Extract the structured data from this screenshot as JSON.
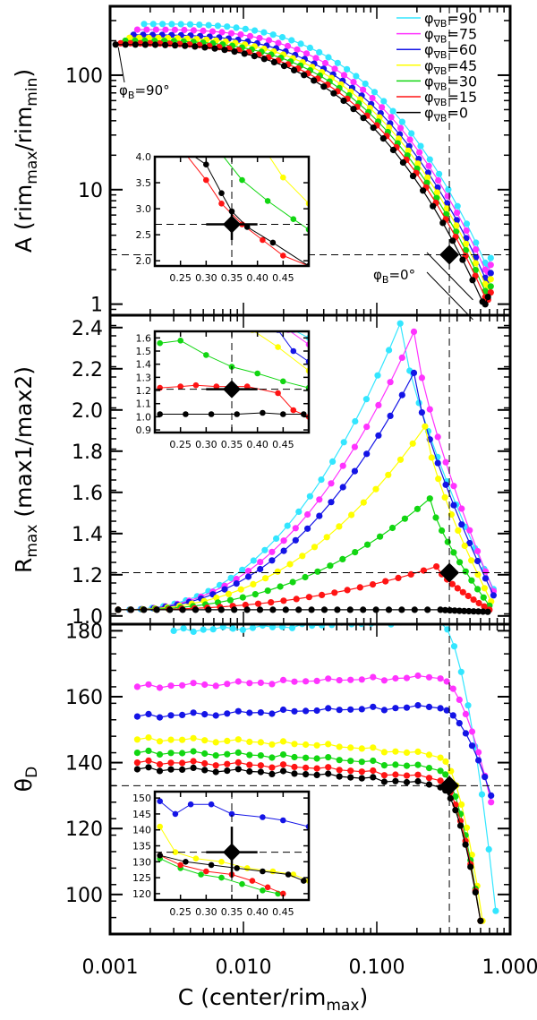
{
  "chart_data": {
    "type": "line",
    "xscale": "log",
    "xlim": [
      0.001,
      1.0
    ],
    "xlabel": "C (center/rim_max)",
    "xlabel_main": "C (center/rim",
    "xlabel_sub": "max",
    "xlabel_end": ")",
    "xticks": [
      0.001,
      0.01,
      0.1,
      1.0
    ],
    "xtick_labels": [
      "0.001",
      "0.010",
      "0.100",
      "1.000"
    ],
    "reference": {
      "C": 0.35
    },
    "legend": {
      "placement": "top-right",
      "prefix": "φ",
      "sub": "∇B",
      "entries": [
        {
          "name": "φ∇B=90",
          "value": "=90",
          "color": "#33e6ff"
        },
        {
          "name": "φ∇B=75",
          "value": "=75",
          "color": "#ff33ff"
        },
        {
          "name": "φ∇B=60",
          "value": "=60",
          "color": "#1414e6"
        },
        {
          "name": "φ∇B=45",
          "value": "=45",
          "color": "#ffff00"
        },
        {
          "name": "φ∇B=30",
          "value": "=30",
          "color": "#12d612"
        },
        {
          "name": "φ∇B=15",
          "value": "=15",
          "color": "#ff1414"
        },
        {
          "name": "φ∇B=0",
          "value": "=0",
          "color": "#000000"
        }
      ]
    },
    "panels": [
      {
        "id": "A",
        "ylabel": "A (rim_max/rim_min)",
        "ylabel_parts": [
          "A (rim",
          "max",
          "/rim",
          "min",
          ")"
        ],
        "yscale": "log",
        "ylim": [
          0.8,
          400
        ],
        "yticks": [
          1,
          10,
          100
        ],
        "ytick_labels": [
          "1",
          "10",
          "100"
        ],
        "reference": {
          "y": 2.7,
          "yerr": 0.3
        },
        "annotations": [
          {
            "text_main": "φ",
            "text_sub": "B",
            "text_end": "=90°",
            "at": [
              0.0011,
              185
            ]
          },
          {
            "text_main": "φ",
            "text_sub": "B",
            "text_end": "=0°",
            "at": [
              0.56,
              1.05
            ]
          }
        ],
        "series": [
          {
            "name": "φ∇B=90",
            "start": [
              0.0018,
              280
            ],
            "end": [
              0.65,
              2.3
            ]
          },
          {
            "name": "φ∇B=75",
            "start": [
              0.0016,
              250
            ],
            "end": [
              0.65,
              2.0
            ]
          },
          {
            "name": "φ∇B=60",
            "start": [
              0.0015,
              225
            ],
            "end": [
              0.65,
              1.7
            ]
          },
          {
            "name": "φ∇B=45",
            "start": [
              0.0014,
              212
            ],
            "end": [
              0.65,
              1.5
            ]
          },
          {
            "name": "φ∇B=30",
            "start": [
              0.0013,
              200
            ],
            "end": [
              0.65,
              1.3
            ]
          },
          {
            "name": "φ∇B=15",
            "start": [
              0.0012,
              190
            ],
            "end": [
              0.65,
              1.15
            ]
          },
          {
            "name": "φ∇B=0",
            "start": [
              0.0011,
              185
            ],
            "end": [
              0.62,
              1.05
            ]
          }
        ],
        "inset": {
          "xlim": [
            0.2,
            0.5
          ],
          "ylim": [
            1.9,
            4.0
          ],
          "xticks": [
            0.25,
            0.3,
            0.35,
            0.4,
            0.45
          ],
          "xtick_labels": [
            "0.25",
            "0.30",
            "0.35",
            "0.40",
            "0.45"
          ],
          "yticks": [
            2.0,
            2.5,
            3.0,
            3.5,
            4.0
          ],
          "ytick_labels": [
            "2.0",
            "2.5",
            "3.0",
            "3.5",
            "4.0"
          ],
          "reference": {
            "x": 0.35,
            "y": 2.7,
            "xerr": 0.05,
            "yerr": 0.3
          },
          "series": [
            {
              "name": "φ∇B=45",
              "points": [
                [
                  0.42,
                  4.05
                ],
                [
                  0.45,
                  3.6
                ],
                [
                  0.5,
                  3.1
                ]
              ]
            },
            {
              "name": "φ∇B=30",
              "points": [
                [
                  0.33,
                  4.05
                ],
                [
                  0.37,
                  3.55
                ],
                [
                  0.42,
                  3.15
                ],
                [
                  0.47,
                  2.8
                ],
                [
                  0.5,
                  2.6
                ]
              ]
            },
            {
              "name": "φ∇B=15",
              "points": [
                [
                  0.26,
                  4.05
                ],
                [
                  0.3,
                  3.55
                ],
                [
                  0.33,
                  3.1
                ],
                [
                  0.37,
                  2.7
                ],
                [
                  0.41,
                  2.4
                ],
                [
                  0.45,
                  2.1
                ],
                [
                  0.5,
                  1.9
                ]
              ]
            },
            {
              "name": "φ∇B=0",
              "points": [
                [
                  0.27,
                  4.05
                ],
                [
                  0.3,
                  3.85
                ],
                [
                  0.33,
                  3.3
                ],
                [
                  0.35,
                  2.95
                ],
                [
                  0.38,
                  2.65
                ],
                [
                  0.43,
                  2.35
                ],
                [
                  0.5,
                  1.9
                ]
              ]
            }
          ]
        }
      },
      {
        "id": "Rmax",
        "ylabel": "R_max (max1/max2)",
        "ylabel_parts": [
          "R",
          "max",
          " (max1/max2)"
        ],
        "yscale": "linear",
        "ylim": [
          0.96,
          2.46
        ],
        "yticks": [
          1.0,
          1.2,
          1.4,
          1.6,
          1.8,
          2.0,
          2.2,
          2.4
        ],
        "ytick_labels": [
          "1.0",
          "1.2",
          "1.4",
          "1.6",
          "1.8",
          "2.0",
          "2.2",
          "2.4"
        ],
        "reference": {
          "y": 1.21,
          "yerr": 0.05
        },
        "series": [
          {
            "name": "φ∇B=90",
            "peak": [
              0.15,
              2.42
            ],
            "end": [
              0.75,
              1.13
            ]
          },
          {
            "name": "φ∇B=75",
            "peak": [
              0.19,
              2.38
            ],
            "end": [
              0.75,
              1.12
            ]
          },
          {
            "name": "φ∇B=60",
            "peak": [
              0.19,
              2.18
            ],
            "end": [
              0.75,
              1.1
            ]
          },
          {
            "name": "φ∇B=45",
            "peak": [
              0.23,
              1.92
            ],
            "end": [
              0.72,
              1.07
            ]
          },
          {
            "name": "φ∇B=30",
            "peak": [
              0.25,
              1.57
            ],
            "end": [
              0.7,
              1.05
            ]
          },
          {
            "name": "φ∇B=15",
            "peak": [
              0.28,
              1.24
            ],
            "end": [
              0.7,
              1.03
            ]
          },
          {
            "name": "φ∇B=0",
            "peak": [
              0.3,
              1.03
            ],
            "end": [
              0.68,
              1.02
            ]
          }
        ],
        "inset": {
          "xlim": [
            0.2,
            0.5
          ],
          "ylim": [
            0.88,
            1.65
          ],
          "xticks": [
            0.25,
            0.3,
            0.35,
            0.4,
            0.45
          ],
          "xtick_labels": [
            "0.25",
            "0.30",
            "0.35",
            "0.40",
            "0.45"
          ],
          "yticks": [
            0.9,
            1.0,
            1.1,
            1.2,
            1.3,
            1.4,
            1.5,
            1.6
          ],
          "ytick_labels": [
            "0.9",
            "1.0",
            "1.1",
            "1.2",
            "1.3",
            "1.4",
            "1.5",
            "1.6"
          ],
          "reference": {
            "x": 0.35,
            "y": 1.21,
            "xerr": 0.05,
            "yerr": 0.05
          },
          "series": [
            {
              "name": "φ∇B=90",
              "points": [
                [
                  0.47,
                  1.66
                ],
                [
                  0.5,
                  1.6
                ]
              ]
            },
            {
              "name": "φ∇B=75",
              "points": [
                [
                  0.46,
                  1.66
                ],
                [
                  0.5,
                  1.55
                ]
              ]
            },
            {
              "name": "φ∇B=60",
              "points": [
                [
                  0.44,
                  1.66
                ],
                [
                  0.47,
                  1.5
                ],
                [
                  0.5,
                  1.42
                ]
              ]
            },
            {
              "name": "φ∇B=45",
              "points": [
                [
                  0.39,
                  1.66
                ],
                [
                  0.44,
                  1.53
                ],
                [
                  0.5,
                  1.35
                ]
              ]
            },
            {
              "name": "φ∇B=30",
              "points": [
                [
                  0.21,
                  1.56
                ],
                [
                  0.25,
                  1.58
                ],
                [
                  0.3,
                  1.47
                ],
                [
                  0.35,
                  1.38
                ],
                [
                  0.4,
                  1.33
                ],
                [
                  0.45,
                  1.27
                ],
                [
                  0.5,
                  1.22
                ]
              ]
            },
            {
              "name": "φ∇B=15",
              "points": [
                [
                  0.21,
                  1.22
                ],
                [
                  0.25,
                  1.23
                ],
                [
                  0.28,
                  1.24
                ],
                [
                  0.32,
                  1.23
                ],
                [
                  0.38,
                  1.23
                ],
                [
                  0.44,
                  1.18
                ],
                [
                  0.47,
                  1.05
                ],
                [
                  0.5,
                  1.0
                ]
              ]
            },
            {
              "name": "φ∇B=0",
              "points": [
                [
                  0.21,
                  1.02
                ],
                [
                  0.26,
                  1.02
                ],
                [
                  0.31,
                  1.02
                ],
                [
                  0.36,
                  1.02
                ],
                [
                  0.41,
                  1.03
                ],
                [
                  0.45,
                  1.02
                ],
                [
                  0.49,
                  1.02
                ]
              ]
            }
          ]
        }
      },
      {
        "id": "thetaD",
        "ylabel": "θ_D",
        "ylabel_parts": [
          "θ",
          "D",
          ""
        ],
        "yscale": "linear",
        "ylim": [
          88,
          182
        ],
        "yticks": [
          100,
          120,
          140,
          160,
          180
        ],
        "ytick_labels": [
          "100",
          "120",
          "140",
          "160",
          "180"
        ],
        "reference": {
          "y": 133,
          "yerr": 8
        },
        "series": [
          {
            "name": "φ∇B=90",
            "level": 180,
            "end": [
              0.78,
              95
            ]
          },
          {
            "name": "φ∇B=75",
            "level": 163,
            "end": [
              0.72,
              128
            ]
          },
          {
            "name": "φ∇B=60",
            "level": 154,
            "end": [
              0.72,
              130
            ]
          },
          {
            "name": "φ∇B=45",
            "level": 147,
            "end": [
              0.62,
              92
            ]
          },
          {
            "name": "φ∇B=30",
            "level": 143,
            "end": [
              0.6,
              92
            ]
          },
          {
            "name": "φ∇B=15",
            "level": 140,
            "end": [
              0.6,
              92
            ]
          },
          {
            "name": "φ∇B=0",
            "level": 138,
            "end": [
              0.6,
              92
            ]
          }
        ],
        "inset": {
          "xlim": [
            0.2,
            0.5
          ],
          "ylim": [
            118,
            152
          ],
          "xticks": [
            0.25,
            0.3,
            0.35,
            0.4,
            0.45
          ],
          "xtick_labels": [
            "0.25",
            "0.30",
            "0.35",
            "0.40",
            "0.45"
          ],
          "yticks": [
            120,
            125,
            130,
            135,
            140,
            145,
            150
          ],
          "ytick_labels": [
            "120",
            "125",
            "130",
            "135",
            "140",
            "145",
            "150"
          ],
          "reference": {
            "x": 0.35,
            "y": 133,
            "xerr": 0.05,
            "yerr": 8
          },
          "series": [
            {
              "name": "φ∇B=60",
              "points": [
                [
                  0.21,
                  149
                ],
                [
                  0.24,
                  145
                ],
                [
                  0.27,
                  148
                ],
                [
                  0.31,
                  148
                ],
                [
                  0.35,
                  145
                ],
                [
                  0.41,
                  144
                ],
                [
                  0.45,
                  143
                ],
                [
                  0.5,
                  141
                ]
              ]
            },
            {
              "name": "φ∇B=45",
              "points": [
                [
                  0.21,
                  141
                ],
                [
                  0.24,
                  133
                ],
                [
                  0.28,
                  131
                ],
                [
                  0.33,
                  130
                ],
                [
                  0.38,
                  128
                ],
                [
                  0.43,
                  127
                ],
                [
                  0.47,
                  126
                ],
                [
                  0.5,
                  124
                ]
              ]
            },
            {
              "name": "φ∇B=30",
              "points": [
                [
                  0.21,
                  131
                ],
                [
                  0.25,
                  128
                ],
                [
                  0.29,
                  126
                ],
                [
                  0.33,
                  125
                ],
                [
                  0.37,
                  123
                ],
                [
                  0.41,
                  121
                ],
                [
                  0.44,
                  120
                ]
              ]
            },
            {
              "name": "φ∇B=15",
              "points": [
                [
                  0.21,
                  132
                ],
                [
                  0.25,
                  129
                ],
                [
                  0.3,
                  127
                ],
                [
                  0.35,
                  126
                ],
                [
                  0.39,
                  124
                ],
                [
                  0.42,
                  122
                ],
                [
                  0.45,
                  120
                ]
              ]
            },
            {
              "name": "φ∇B=0",
              "points": [
                [
                  0.21,
                  132
                ],
                [
                  0.26,
                  130
                ],
                [
                  0.31,
                  129
                ],
                [
                  0.36,
                  128
                ],
                [
                  0.41,
                  127
                ],
                [
                  0.46,
                  126
                ],
                [
                  0.49,
                  124
                ]
              ]
            }
          ]
        }
      }
    ]
  }
}
